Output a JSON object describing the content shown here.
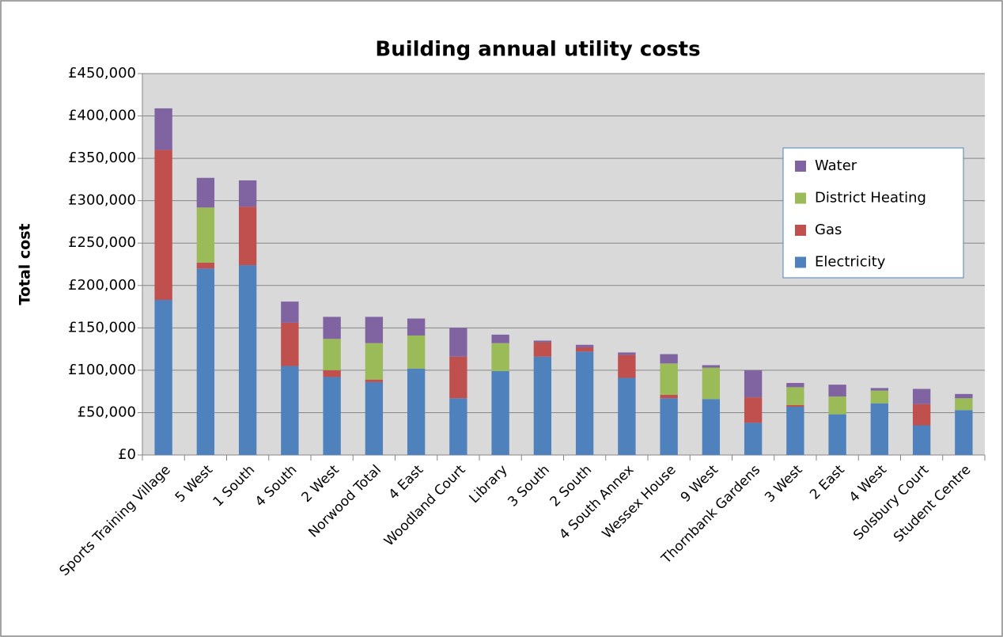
{
  "chart_data": {
    "type": "stacked_bar",
    "title": "Building annual utility costs",
    "y_label": "Total cost",
    "categories": [
      "Sports Training Village",
      "5 West",
      "1 South",
      "4 South",
      "2 West",
      "Norwood Total",
      "4 East",
      "Woodland Court",
      "Library",
      "3 South",
      "2 South",
      "4 South Annex",
      "Wessex House",
      "9 West",
      "Thornbank Gardens",
      "3 West",
      "2 East",
      "4 West",
      "Solsbury Court",
      "Student Centre"
    ],
    "series": [
      {
        "name": "Electricity",
        "color": "#4f81bd",
        "values": [
          183000,
          220000,
          224000,
          105000,
          92000,
          86000,
          102000,
          67000,
          99000,
          116000,
          122000,
          91000,
          67000,
          66000,
          38000,
          57000,
          48000,
          61000,
          35000,
          53000
        ]
      },
      {
        "name": "Gas",
        "color": "#c0504d",
        "values": [
          177000,
          7000,
          69000,
          51000,
          8000,
          3000,
          0,
          49000,
          0,
          17000,
          5000,
          27000,
          4000,
          0,
          30000,
          2000,
          0,
          0,
          25000,
          0
        ]
      },
      {
        "name": "District Heating",
        "color": "#9bbb59",
        "values": [
          0,
          65000,
          0,
          0,
          37000,
          43000,
          39000,
          0,
          33000,
          0,
          0,
          0,
          37000,
          37000,
          0,
          21000,
          21000,
          15000,
          0,
          14000
        ]
      },
      {
        "name": "Water",
        "color": "#8064a2",
        "values": [
          49000,
          35000,
          31000,
          25000,
          26000,
          31000,
          20000,
          34000,
          10000,
          2000,
          3000,
          3000,
          11000,
          3000,
          32000,
          5000,
          14000,
          3000,
          18000,
          5000
        ]
      }
    ],
    "ylim": [
      0,
      450000
    ],
    "yticks": [
      {
        "value": 0,
        "label": "£0"
      },
      {
        "value": 50000,
        "label": "£50,000"
      },
      {
        "value": 100000,
        "label": "£100,000"
      },
      {
        "value": 150000,
        "label": "£150,000"
      },
      {
        "value": 200000,
        "label": "£200,000"
      },
      {
        "value": 250000,
        "label": "£250,000"
      },
      {
        "value": 300000,
        "label": "£300,000"
      },
      {
        "value": 350000,
        "label": "£350,000"
      },
      {
        "value": 400000,
        "label": "£400,000"
      },
      {
        "value": 450000,
        "label": "£450,000"
      }
    ],
    "grid": true,
    "legend_position": "right"
  }
}
